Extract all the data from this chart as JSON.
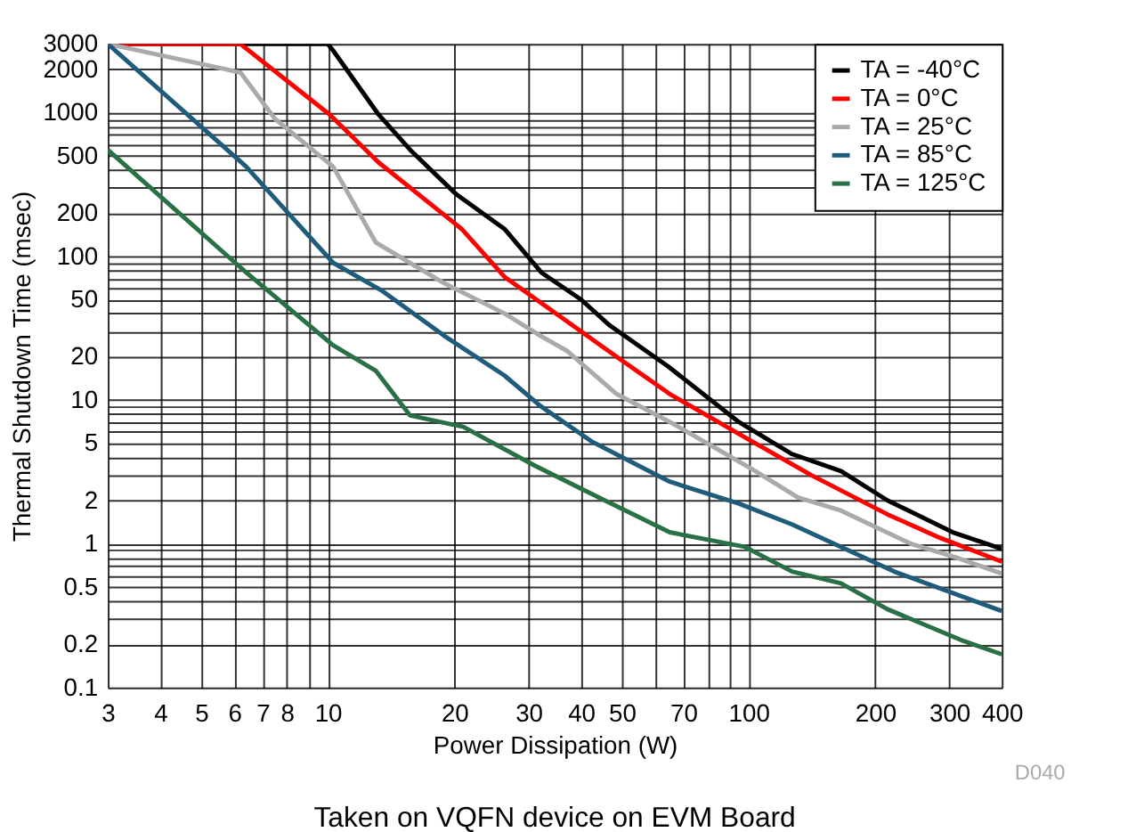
{
  "chart_data": {
    "type": "line",
    "xlabel": "Power Dissipation (W)",
    "ylabel": "Thermal Shutdown Time (msec)",
    "annotations": [
      "D040",
      "Taken on VQFN device on EVM Board"
    ],
    "log": "xy",
    "grid": true,
    "legend": "top right",
    "line_style": "solid",
    "marker": "none",
    "xlim": [
      3,
      400
    ],
    "ylim": [
      0.1,
      3000
    ],
    "xticks": [
      3,
      4,
      5,
      6,
      7,
      8,
      {
        "value": 9,
        "label": null
      },
      10,
      20,
      30,
      40,
      50,
      {
        "value": 60,
        "label": null
      },
      70,
      {
        "value": 80,
        "label": null
      },
      {
        "value": 90,
        "label": null
      },
      100,
      200,
      300,
      400
    ],
    "yticks": [
      0.1,
      0.2,
      {
        "value": 0.3,
        "label": null
      },
      {
        "value": 0.4,
        "label": null
      },
      0.5,
      {
        "value": 0.6,
        "label": null
      },
      {
        "value": 0.7,
        "label": null
      },
      {
        "value": 0.8,
        "label": null
      },
      {
        "value": 0.9,
        "label": null
      },
      1,
      2,
      {
        "value": 3,
        "label": null
      },
      {
        "value": 4,
        "label": null
      },
      5,
      {
        "value": 6,
        "label": null
      },
      {
        "value": 7,
        "label": null
      },
      {
        "value": 8,
        "label": null
      },
      {
        "value": 9,
        "label": null
      },
      10,
      20,
      {
        "value": 30,
        "label": null
      },
      {
        "value": 40,
        "label": null
      },
      50,
      {
        "value": 60,
        "label": null
      },
      {
        "value": 70,
        "label": null
      },
      {
        "value": 80,
        "label": null
      },
      {
        "value": 90,
        "label": null
      },
      100,
      200,
      {
        "value": 300,
        "label": null
      },
      {
        "value": 400,
        "label": null
      },
      500,
      {
        "value": 600,
        "label": null
      },
      {
        "value": 700,
        "label": null
      },
      {
        "value": 800,
        "label": null
      },
      {
        "value": 900,
        "label": null
      },
      1000,
      2000,
      3000
    ],
    "series": [
      {
        "name": "TA = -40°C",
        "color": "#000000",
        "x": [
          3,
          10,
          10.3,
          13.2,
          15.7,
          20.2,
          26.3,
          32.2,
          40,
          46.8,
          64.6,
          95,
          127,
          166,
          214,
          306,
          400
        ],
        "values": [
          3000,
          3000,
          2700,
          970,
          550,
          270,
          155,
          77,
          50,
          33,
          17,
          7,
          4.2,
          3.2,
          2,
          1.2,
          0.92
        ]
      },
      {
        "name": "TA = 0°C",
        "color": "#ff0000",
        "x": [
          3,
          6.2,
          10.1,
          13.2,
          20.8,
          26.3,
          40,
          48.6,
          65,
          98,
          141,
          214,
          285,
          400
        ],
        "values": [
          3000,
          3000,
          970,
          450,
          155,
          72,
          30,
          20,
          11,
          5.5,
          3,
          1.6,
          1.1,
          0.75
        ]
      },
      {
        "name": "TA = 25°C",
        "color": "#aaaaaa",
        "x": [
          3,
          6.2,
          7.5,
          10.3,
          13,
          18.9,
          26.3,
          32,
          37,
          48.6,
          67,
          102,
          131,
          166,
          243,
          312,
          400
        ],
        "values": [
          3000,
          1900,
          900,
          420,
          125,
          65,
          40,
          28,
          22,
          11,
          6.7,
          3.3,
          2.1,
          1.7,
          1,
          0.8,
          0.62
        ]
      },
      {
        "name": "TA = 85°C",
        "color": "#1f5b7a",
        "x": [
          3,
          6.4,
          10.3,
          13.4,
          18.9,
          26.3,
          32,
          42.6,
          65,
          95,
          127,
          166,
          222,
          400
        ],
        "values": [
          3000,
          420,
          90,
          58,
          28,
          14.8,
          9.1,
          5.1,
          2.7,
          1.9,
          1.36,
          0.95,
          0.64,
          0.34
        ]
      },
      {
        "name": "TA = 125°C",
        "color": "#2a7046",
        "x": [
          3,
          6.4,
          10.3,
          13,
          15.7,
          21,
          31,
          44,
          65,
          98,
          127,
          166,
          214,
          325,
          400
        ],
        "values": [
          550,
          77,
          24,
          16,
          7.8,
          6.5,
          3.5,
          2.1,
          1.2,
          0.95,
          0.64,
          0.53,
          0.35,
          0.21,
          0.17
        ]
      }
    ]
  }
}
